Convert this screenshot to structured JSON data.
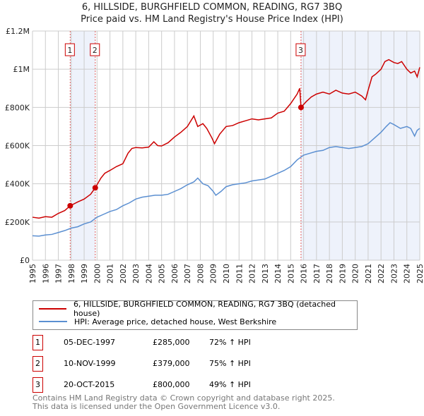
{
  "chart_data": {
    "type": "line",
    "title": "6, HILLSIDE, BURGHFIELD COMMON, READING, RG7 3BQ",
    "subtitle": "Price paid vs. HM Land Registry's House Price Index (HPI)",
    "xlim": [
      1995,
      2025
    ],
    "ylim": [
      0,
      1200000
    ],
    "x_ticks": [
      "1995",
      "1996",
      "1997",
      "1998",
      "1999",
      "2000",
      "2001",
      "2002",
      "2003",
      "2004",
      "2005",
      "2006",
      "2007",
      "2008",
      "2009",
      "2010",
      "2011",
      "2012",
      "2013",
      "2014",
      "2015",
      "2016",
      "2017",
      "2018",
      "2019",
      "2020",
      "2021",
      "2022",
      "2023",
      "2024",
      "2025"
    ],
    "y_ticks": [
      {
        "v": 0,
        "label": "£0"
      },
      {
        "v": 200000,
        "label": "£200K"
      },
      {
        "v": 400000,
        "label": "£400K"
      },
      {
        "v": 600000,
        "label": "£600K"
      },
      {
        "v": 800000,
        "label": "£800K"
      },
      {
        "v": 1000000,
        "label": "£1M"
      },
      {
        "v": 1200000,
        "label": "£1.2M"
      }
    ],
    "grid": true,
    "series": [
      {
        "name": "6, HILLSIDE, BURGHFIELD COMMON, READING, RG7 3BQ (detached house)",
        "color": "#cc0000",
        "x": [
          1995,
          1995.5,
          1996,
          1996.5,
          1997,
          1997.5,
          1997.92,
          1998.5,
          1999,
          1999.5,
          1999.86,
          2000.3,
          2000.6,
          2001,
          2001.5,
          2002,
          2002.4,
          2002.7,
          2003,
          2003.5,
          2004,
          2004.4,
          2004.7,
          2005,
          2005.5,
          2006,
          2006.5,
          2007,
          2007.5,
          2007.8,
          2008.2,
          2008.5,
          2008.9,
          2009.1,
          2009.5,
          2010,
          2010.5,
          2011,
          2011.5,
          2012,
          2012.5,
          2013,
          2013.5,
          2014,
          2014.5,
          2015,
          2015.5,
          2015.7,
          2015.8,
          2016.2,
          2016.6,
          2017,
          2017.5,
          2018,
          2018.5,
          2019,
          2019.5,
          2020,
          2020.5,
          2020.8,
          2021,
          2021.3,
          2021.6,
          2022,
          2022.3,
          2022.6,
          2023,
          2023.3,
          2023.6,
          2024,
          2024.3,
          2024.6,
          2024.8,
          2025
        ],
        "y": [
          225000,
          220000,
          228000,
          225000,
          245000,
          260000,
          285000,
          305000,
          320000,
          345000,
          379000,
          430000,
          455000,
          470000,
          490000,
          505000,
          560000,
          585000,
          590000,
          588000,
          592000,
          620000,
          600000,
          598000,
          615000,
          645000,
          670000,
          700000,
          755000,
          700000,
          715000,
          690000,
          640000,
          610000,
          660000,
          700000,
          705000,
          720000,
          730000,
          740000,
          735000,
          740000,
          745000,
          770000,
          780000,
          820000,
          870000,
          900000,
          800000,
          830000,
          855000,
          870000,
          880000,
          870000,
          890000,
          875000,
          870000,
          880000,
          860000,
          840000,
          890000,
          960000,
          975000,
          1000000,
          1040000,
          1050000,
          1035000,
          1030000,
          1040000,
          1000000,
          980000,
          990000,
          960000,
          1010000
        ]
      },
      {
        "name": "HPI: Average price, detached house, West Berkshire",
        "color": "#5b8fd1",
        "x": [
          1995,
          1995.5,
          1996,
          1996.5,
          1997,
          1997.5,
          1998,
          1998.5,
          1999,
          1999.5,
          2000,
          2000.5,
          2001,
          2001.5,
          2002,
          2002.5,
          2003,
          2003.5,
          2004,
          2004.5,
          2005,
          2005.5,
          2006,
          2006.5,
          2007,
          2007.5,
          2007.8,
          2008.2,
          2008.6,
          2009,
          2009.2,
          2009.6,
          2010,
          2010.5,
          2011,
          2011.5,
          2012,
          2012.5,
          2013,
          2013.5,
          2014,
          2014.5,
          2015,
          2015.5,
          2016,
          2016.5,
          2017,
          2017.5,
          2018,
          2018.5,
          2019,
          2019.5,
          2020,
          2020.5,
          2021,
          2021.5,
          2022,
          2022.4,
          2022.7,
          2023,
          2023.5,
          2024,
          2024.3,
          2024.6,
          2024.8,
          2025
        ],
        "y": [
          128000,
          126000,
          132000,
          135000,
          145000,
          155000,
          168000,
          175000,
          190000,
          200000,
          225000,
          240000,
          255000,
          265000,
          285000,
          300000,
          320000,
          330000,
          335000,
          340000,
          340000,
          345000,
          360000,
          375000,
          395000,
          410000,
          430000,
          400000,
          390000,
          360000,
          340000,
          360000,
          385000,
          395000,
          400000,
          405000,
          415000,
          420000,
          425000,
          440000,
          455000,
          470000,
          490000,
          525000,
          550000,
          560000,
          570000,
          575000,
          590000,
          595000,
          590000,
          585000,
          590000,
          595000,
          610000,
          640000,
          670000,
          700000,
          720000,
          710000,
          690000,
          700000,
          690000,
          650000,
          680000,
          690000
        ]
      }
    ],
    "markers": [
      {
        "label": "1",
        "x": 1997.92,
        "y": 285000
      },
      {
        "label": "2",
        "x": 1999.86,
        "y": 379000
      },
      {
        "label": "3",
        "x": 2015.8,
        "y": 800000
      }
    ]
  },
  "transactions": [
    {
      "num": "1",
      "date": "05-DEC-1997",
      "price": "£285,000",
      "hpi": "72% ↑ HPI"
    },
    {
      "num": "2",
      "date": "10-NOV-1999",
      "price": "£379,000",
      "hpi": "75% ↑ HPI"
    },
    {
      "num": "3",
      "date": "20-OCT-2015",
      "price": "£800,000",
      "hpi": "49% ↑ HPI"
    }
  ],
  "footer": [
    "Contains HM Land Registry data © Crown copyright and database right 2025.",
    "This data is licensed under the Open Government Licence v3.0."
  ]
}
